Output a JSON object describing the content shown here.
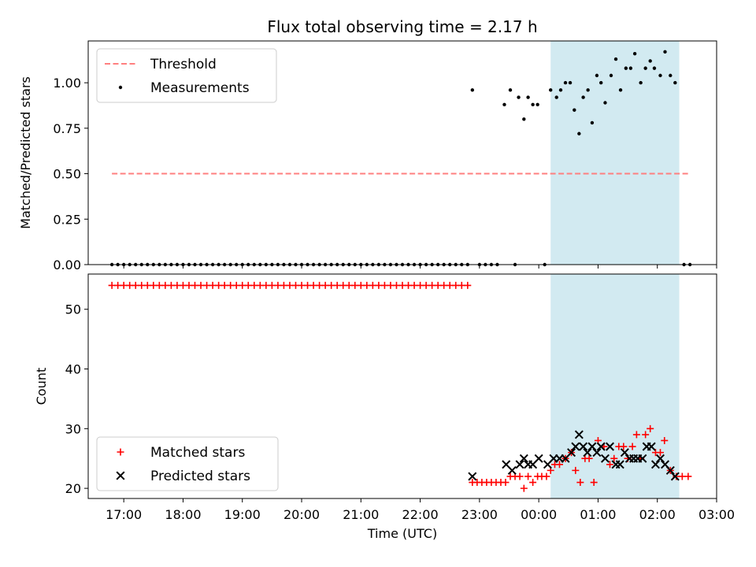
{
  "figure": {
    "title": "Flux total observing time = 2.17 h"
  },
  "chart_data": [
    {
      "type": "scatter",
      "ylabel": "Matched/Predicted stars",
      "xlim": [
        16.4,
        27.0
      ],
      "ylim": [
        0.0,
        1.23
      ],
      "yticks": [
        0.0,
        0.25,
        0.5,
        0.75,
        1.0
      ],
      "ytick_labels": [
        "0.00",
        "0.25",
        "0.50",
        "0.75",
        "1.00"
      ],
      "grid": false,
      "legend_position": "top-left",
      "highlight_span": {
        "x": [
          24.2,
          26.37
        ],
        "color": "#add8e6"
      },
      "threshold": {
        "name": "Threshold",
        "y": 0.5,
        "x": [
          16.8,
          26.55
        ],
        "color": "#ff7f7f",
        "style": "dashed"
      },
      "series": [
        {
          "name": "Measurements",
          "color": "#000000",
          "marker": "dot",
          "zeros_x_range": [
            16.8,
            22.8
          ],
          "zeros_step": 0.1,
          "points": [
            [
              22.88,
              0.96
            ],
            [
              23.0,
              0.0
            ],
            [
              23.1,
              0.0
            ],
            [
              23.2,
              0.0
            ],
            [
              23.3,
              0.0
            ],
            [
              23.42,
              0.88
            ],
            [
              23.52,
              0.96
            ],
            [
              23.6,
              0.0
            ],
            [
              23.66,
              0.92
            ],
            [
              23.75,
              0.8
            ],
            [
              23.82,
              0.92
            ],
            [
              23.9,
              0.88
            ],
            [
              23.98,
              0.88
            ],
            [
              24.1,
              0.0
            ],
            [
              24.2,
              0.96
            ],
            [
              24.3,
              0.92
            ],
            [
              24.37,
              0.96
            ],
            [
              24.45,
              1.0
            ],
            [
              24.53,
              1.0
            ],
            [
              24.6,
              0.85
            ],
            [
              24.68,
              0.72
            ],
            [
              24.75,
              0.92
            ],
            [
              24.83,
              0.96
            ],
            [
              24.9,
              0.78
            ],
            [
              24.98,
              1.04
            ],
            [
              25.05,
              1.0
            ],
            [
              25.12,
              0.89
            ],
            [
              25.22,
              1.04
            ],
            [
              25.3,
              1.13
            ],
            [
              25.38,
              0.96
            ],
            [
              25.47,
              1.08
            ],
            [
              25.55,
              1.08
            ],
            [
              25.62,
              1.16
            ],
            [
              25.72,
              1.0
            ],
            [
              25.8,
              1.08
            ],
            [
              25.88,
              1.12
            ],
            [
              25.95,
              1.08
            ],
            [
              26.05,
              1.04
            ],
            [
              26.13,
              1.17
            ],
            [
              26.22,
              1.04
            ],
            [
              26.3,
              1.0
            ],
            [
              26.45,
              0.0
            ],
            [
              26.55,
              0.0
            ]
          ]
        }
      ]
    },
    {
      "type": "scatter",
      "ylabel": "Count",
      "xlabel": "Time (UTC)",
      "xlim": [
        16.4,
        27.0
      ],
      "ylim": [
        18.3,
        55.9
      ],
      "xticks": [
        17,
        18,
        19,
        20,
        21,
        22,
        23,
        24,
        25,
        26,
        27
      ],
      "xtick_labels": [
        "17:00",
        "18:00",
        "19:00",
        "20:00",
        "21:00",
        "22:00",
        "23:00",
        "00:00",
        "01:00",
        "02:00",
        "03:00"
      ],
      "yticks": [
        20,
        30,
        40,
        50
      ],
      "ytick_labels": [
        "20",
        "30",
        "40",
        "50"
      ],
      "grid": false,
      "legend_position": "bottom-left",
      "highlight_span": {
        "x": [
          24.2,
          26.37
        ],
        "color": "#add8e6"
      },
      "series": [
        {
          "name": "Matched stars",
          "color": "#ff0000",
          "marker": "plus",
          "constant_segment": {
            "x_range": [
              16.8,
              22.8
            ],
            "step": 0.1,
            "y": 54
          },
          "points": [
            [
              22.88,
              21
            ],
            [
              22.96,
              21
            ],
            [
              23.04,
              21
            ],
            [
              23.12,
              21
            ],
            [
              23.2,
              21
            ],
            [
              23.28,
              21
            ],
            [
              23.36,
              21
            ],
            [
              23.44,
              21
            ],
            [
              23.52,
              22
            ],
            [
              23.6,
              22
            ],
            [
              23.68,
              22
            ],
            [
              23.75,
              20
            ],
            [
              23.82,
              22
            ],
            [
              23.9,
              21
            ],
            [
              23.98,
              22
            ],
            [
              24.05,
              22
            ],
            [
              24.13,
              22
            ],
            [
              24.2,
              23
            ],
            [
              24.27,
              24
            ],
            [
              24.35,
              24
            ],
            [
              24.45,
              25
            ],
            [
              24.55,
              26
            ],
            [
              24.62,
              23
            ],
            [
              24.7,
              21
            ],
            [
              24.78,
              25
            ],
            [
              24.85,
              25
            ],
            [
              24.93,
              21
            ],
            [
              25.0,
              28
            ],
            [
              25.1,
              27
            ],
            [
              25.2,
              24
            ],
            [
              25.27,
              25
            ],
            [
              25.35,
              27
            ],
            [
              25.43,
              27
            ],
            [
              25.5,
              25
            ],
            [
              25.58,
              27
            ],
            [
              25.65,
              29
            ],
            [
              25.72,
              25
            ],
            [
              25.8,
              29
            ],
            [
              25.88,
              30
            ],
            [
              25.97,
              26
            ],
            [
              26.05,
              26
            ],
            [
              26.12,
              28
            ],
            [
              26.22,
              23
            ],
            [
              26.32,
              22
            ],
            [
              26.42,
              22
            ],
            [
              26.52,
              22
            ]
          ]
        },
        {
          "name": "Predicted stars",
          "color": "#000000",
          "marker": "x",
          "points": [
            [
              22.88,
              22
            ],
            [
              23.45,
              24
            ],
            [
              23.55,
              23
            ],
            [
              23.68,
              24
            ],
            [
              23.75,
              25
            ],
            [
              23.82,
              24
            ],
            [
              23.9,
              24
            ],
            [
              24.0,
              25
            ],
            [
              24.15,
              24
            ],
            [
              24.25,
              25
            ],
            [
              24.35,
              25
            ],
            [
              24.45,
              25
            ],
            [
              24.55,
              26
            ],
            [
              24.62,
              27
            ],
            [
              24.68,
              29
            ],
            [
              24.75,
              27
            ],
            [
              24.82,
              26
            ],
            [
              24.9,
              27
            ],
            [
              24.98,
              26
            ],
            [
              25.05,
              27
            ],
            [
              25.12,
              25
            ],
            [
              25.2,
              27
            ],
            [
              25.3,
              24
            ],
            [
              25.37,
              24
            ],
            [
              25.45,
              26
            ],
            [
              25.53,
              25
            ],
            [
              25.6,
              25
            ],
            [
              25.67,
              25
            ],
            [
              25.75,
              25
            ],
            [
              25.82,
              27
            ],
            [
              25.9,
              27
            ],
            [
              25.97,
              24
            ],
            [
              26.05,
              25
            ],
            [
              26.13,
              24
            ],
            [
              26.22,
              23
            ],
            [
              26.3,
              22
            ]
          ]
        }
      ]
    }
  ]
}
